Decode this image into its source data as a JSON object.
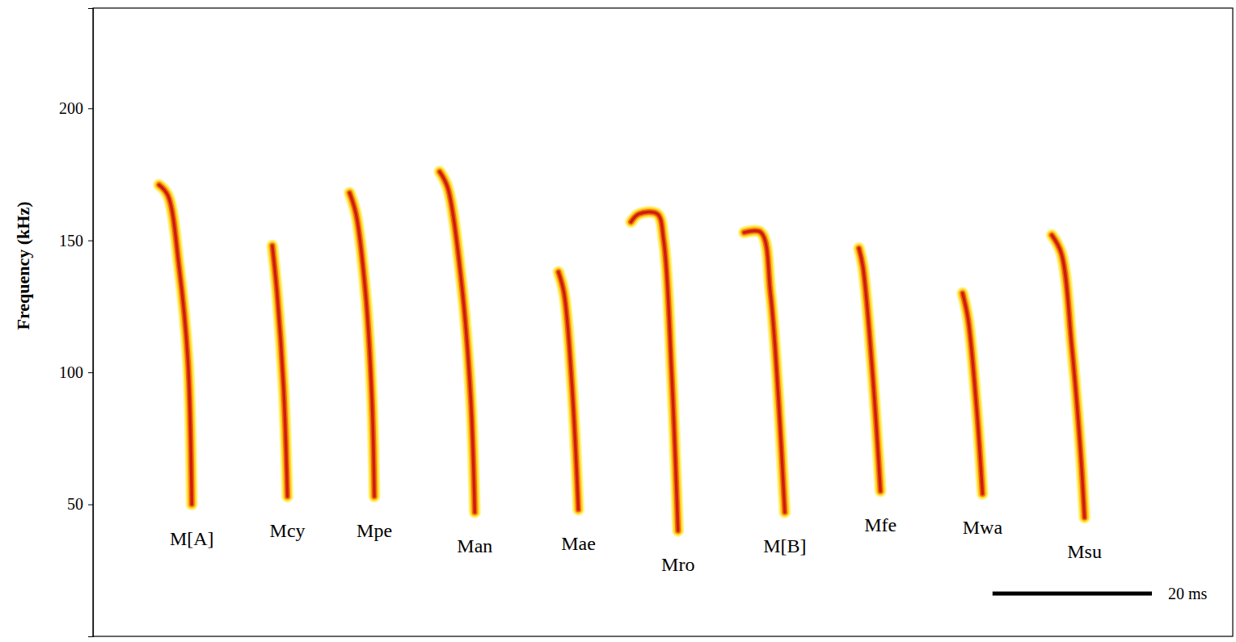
{
  "chart_data": {
    "type": "spectrogram",
    "y_label": "Frequency (kHz)",
    "ylim": [
      0,
      238
    ],
    "yticks": [
      50,
      100,
      150,
      200
    ],
    "xlim": [
      0,
      143
    ],
    "tick_labels": "y",
    "scale_bar": {
      "value": 20,
      "label": "20 ms"
    },
    "series": [
      {
        "name": "M[A]",
        "x": [
          8.3,
          9.4,
          10.8,
          11.9,
          12.4
        ],
        "values": [
          171,
          167,
          140,
          105,
          50
        ]
      },
      {
        "name": "Mcy",
        "x": [
          22.5,
          23.1,
          23.9,
          24.4
        ],
        "values": [
          148,
          130,
          95,
          53
        ]
      },
      {
        "name": "Mpe",
        "x": [
          32.2,
          33.0,
          34.2,
          35.0,
          35.3
        ],
        "values": [
          168,
          160,
          130,
          90,
          53
        ]
      },
      {
        "name": "Man",
        "x": [
          43.5,
          44.5,
          46.2,
          47.4,
          47.9
        ],
        "values": [
          176,
          170,
          135,
          90,
          47
        ]
      },
      {
        "name": "Mae",
        "x": [
          58.4,
          59.1,
          60.1,
          60.9
        ],
        "values": [
          138,
          130,
          95,
          48
        ]
      },
      {
        "name": "Mro",
        "x": [
          67.5,
          68.5,
          70.8,
          71.6,
          72.6,
          73.4
        ],
        "values": [
          157,
          160,
          160,
          150,
          100,
          40
        ]
      },
      {
        "name": "M[B]",
        "x": [
          81.7,
          83.8,
          85.0,
          86.0,
          86.8
        ],
        "values": [
          153,
          153,
          130,
          90,
          47
        ]
      },
      {
        "name": "Mfe",
        "x": [
          96.1,
          96.6,
          97.8,
          98.8
        ],
        "values": [
          147,
          140,
          100,
          55
        ]
      },
      {
        "name": "Mwa",
        "x": [
          109.1,
          109.8,
          110.9,
          111.6
        ],
        "values": [
          130,
          120,
          85,
          54
        ]
      },
      {
        "name": "Msu",
        "x": [
          120.3,
          121.5,
          122.8,
          123.9,
          124.4
        ],
        "values": [
          152,
          145,
          110,
          70,
          45
        ]
      }
    ]
  }
}
